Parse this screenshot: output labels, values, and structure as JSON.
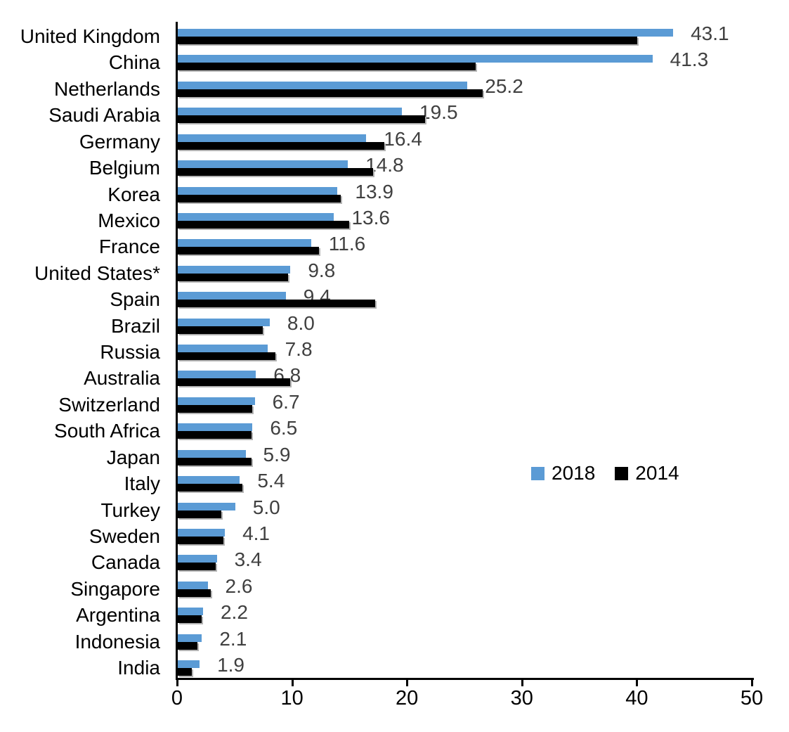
{
  "chart_data": {
    "type": "bar",
    "orientation": "horizontal",
    "categories": [
      "United Kingdom",
      "China",
      "Netherlands",
      "Saudi Arabia",
      "Germany",
      "Belgium",
      "Korea",
      "Mexico",
      "France",
      "United States*",
      "Spain",
      "Brazil",
      "Russia",
      "Australia",
      "Switzerland",
      "South Africa",
      "Japan",
      "Italy",
      "Turkey",
      "Sweden",
      "Canada",
      "Singapore",
      "Argentina",
      "Indonesia",
      "India"
    ],
    "series": [
      {
        "name": "2018",
        "color": "#5B9BD5",
        "values": [
          43.1,
          41.3,
          25.2,
          19.5,
          16.4,
          14.8,
          13.9,
          13.6,
          11.6,
          9.8,
          9.4,
          8.0,
          7.8,
          6.8,
          6.7,
          6.5,
          5.9,
          5.4,
          5.0,
          4.1,
          3.4,
          2.6,
          2.2,
          2.1,
          1.9
        ]
      },
      {
        "name": "2014",
        "color": "#000000",
        "values": [
          40.0,
          25.9,
          26.5,
          21.5,
          18.0,
          17.0,
          14.2,
          14.9,
          12.3,
          9.6,
          17.2,
          7.4,
          8.5,
          9.8,
          6.5,
          6.4,
          6.4,
          5.6,
          3.8,
          4.0,
          3.3,
          2.9,
          2.1,
          1.7,
          1.2
        ]
      }
    ],
    "value_labels": [
      "43.1",
      "41.3",
      "25.2",
      "19.5",
      "16.4",
      "14.8",
      "13.9",
      "13.6",
      "11.6",
      "9.8",
      "9.4",
      "8.0",
      "7.8",
      "6.8",
      "6.7",
      "6.5",
      "5.9",
      "5.4",
      "5.0",
      "4.1",
      "3.4",
      "2.6",
      "2.2",
      "2.1",
      "1.9"
    ],
    "value_label_series": "2018",
    "xlim": [
      0,
      50
    ],
    "x_ticks": [
      0,
      10,
      20,
      30,
      40,
      50
    ],
    "grid": false,
    "legend_position": "middle-right"
  },
  "colors": {
    "bar_2018": "#5B9BD5",
    "bar_2014": "#000000",
    "value_label": "#404040",
    "axis": "#000000",
    "black_bar_shadow": "#b3b3b3"
  }
}
